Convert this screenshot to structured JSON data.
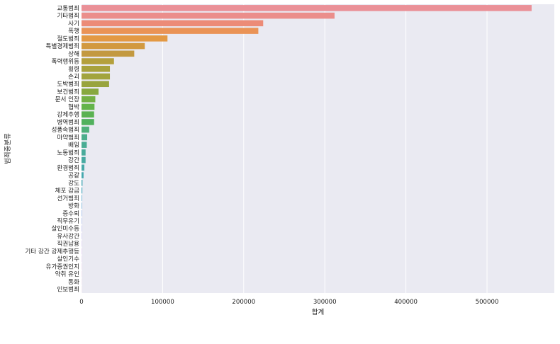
{
  "chart_data": {
    "type": "bar",
    "orientation": "horizontal",
    "categories": [
      "교통범죄",
      "기타범죄",
      "사기",
      "폭행",
      "절도범죄",
      "특별경제범죄",
      "상해",
      "폭력행위등",
      "횡령",
      "손괴",
      "도박범죄",
      "보건범죄",
      "문서 인장",
      "협박",
      "강제추행",
      "병역범죄",
      "성풍속범죄",
      "마약범죄",
      "배임",
      "노동범죄",
      "강간",
      "환경범죄",
      "공갈",
      "강도",
      "체포 감금",
      "선거범죄",
      "방화",
      "증수뢰",
      "직무유기",
      "살인미수등",
      "유사강간",
      "직권남용",
      "기타 강간 강제추행등",
      "살인기수",
      "유가증권인지",
      "약취 유인",
      "통화",
      "인보범죄"
    ],
    "values": [
      555000,
      312000,
      224000,
      218000,
      106000,
      78000,
      65000,
      40000,
      35000,
      35000,
      34000,
      21000,
      17000,
      16000,
      15500,
      15500,
      9500,
      7000,
      6500,
      5000,
      5000,
      3500,
      2500,
      1200,
      1000,
      600,
      500,
      400,
      350,
      300,
      250,
      200,
      200,
      150,
      120,
      100,
      80,
      60
    ],
    "colors": [
      "#ea9097",
      "#eb8e8b",
      "#ec8b77",
      "#ea9356",
      "#e39944",
      "#d29940",
      "#c39940",
      "#b4a03c",
      "#a8a23c",
      "#a2a43d",
      "#98a43d",
      "#88a83f",
      "#74b045",
      "#64b44a",
      "#5ab251",
      "#51b15d",
      "#4fb07a",
      "#4cae8c",
      "#4aad94",
      "#49ab9b",
      "#48aaa2",
      "#47a9a8",
      "#46a8ae",
      "#46a7b5",
      "#47a6bd",
      "#49a3c8",
      "#4e9fd3",
      "#6c9be4",
      "#839ae8",
      "#9696ee",
      "#a793ee",
      "#b690ee",
      "#c48cee",
      "#d188e6",
      "#de85d6",
      "#e784c4",
      "#eb86b4",
      "#eb89a6"
    ],
    "xlabel": "합계",
    "ylabel": "범죄중분류",
    "xlim": [
      0,
      583000
    ],
    "xticks": [
      0,
      100000,
      200000,
      300000,
      400000,
      500000
    ],
    "xtick_labels": [
      "0",
      "100000",
      "200000",
      "300000",
      "400000",
      "500000"
    ],
    "grid": true,
    "legend": "none",
    "background": "#eaeaf2",
    "grid_color": "#ffffff"
  }
}
